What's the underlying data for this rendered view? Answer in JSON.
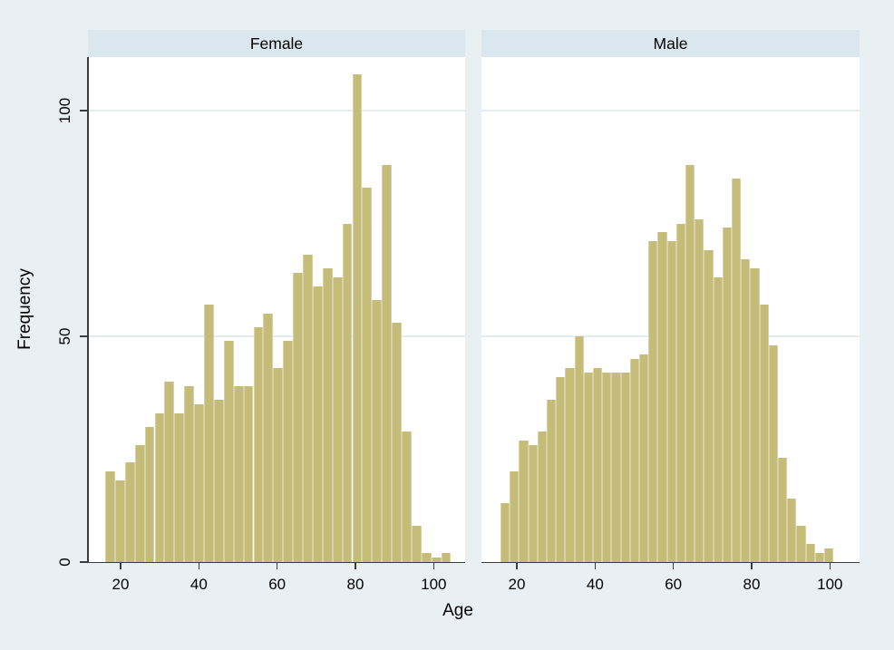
{
  "chart_data": {
    "type": "bar",
    "subtype": "faceted-histogram",
    "xlabel": "Age",
    "ylabel": "Frequency",
    "x_ticks": [
      20,
      40,
      60,
      80,
      100
    ],
    "y_ticks": [
      0,
      50,
      100
    ],
    "ylim": [
      0,
      112
    ],
    "xlim": [
      11.5,
      108
    ],
    "grid": "horizontal-only",
    "legend": "none",
    "bin_width_years": 2.4,
    "panels": [
      {
        "label": "Female",
        "first_bin_start_age": 16,
        "frequencies": [
          20,
          18,
          22,
          26,
          30,
          33,
          40,
          33,
          39,
          35,
          57,
          36,
          49,
          39,
          39,
          52,
          55,
          43,
          49,
          64,
          68,
          61,
          65,
          63,
          75,
          108,
          83,
          58,
          88,
          53,
          29,
          8,
          2,
          1,
          2
        ]
      },
      {
        "label": "Male",
        "first_bin_start_age": 16,
        "frequencies": [
          13,
          20,
          27,
          26,
          29,
          36,
          41,
          43,
          50,
          42,
          43,
          42,
          42,
          42,
          45,
          46,
          71,
          73,
          71,
          75,
          88,
          76,
          69,
          63,
          74,
          85,
          67,
          65,
          57,
          48,
          23,
          14,
          8,
          4,
          2,
          3
        ]
      }
    ]
  },
  "colors": {
    "background": "#e9f0f3",
    "panel_header": "#dbe7ee",
    "plot_background": "#ffffff",
    "bar_fill": "#c5bc7a",
    "bar_edge": "#d8d2a2",
    "gridline": "#e3edf0",
    "axis": "#3c3c3c",
    "text": "#000000"
  }
}
